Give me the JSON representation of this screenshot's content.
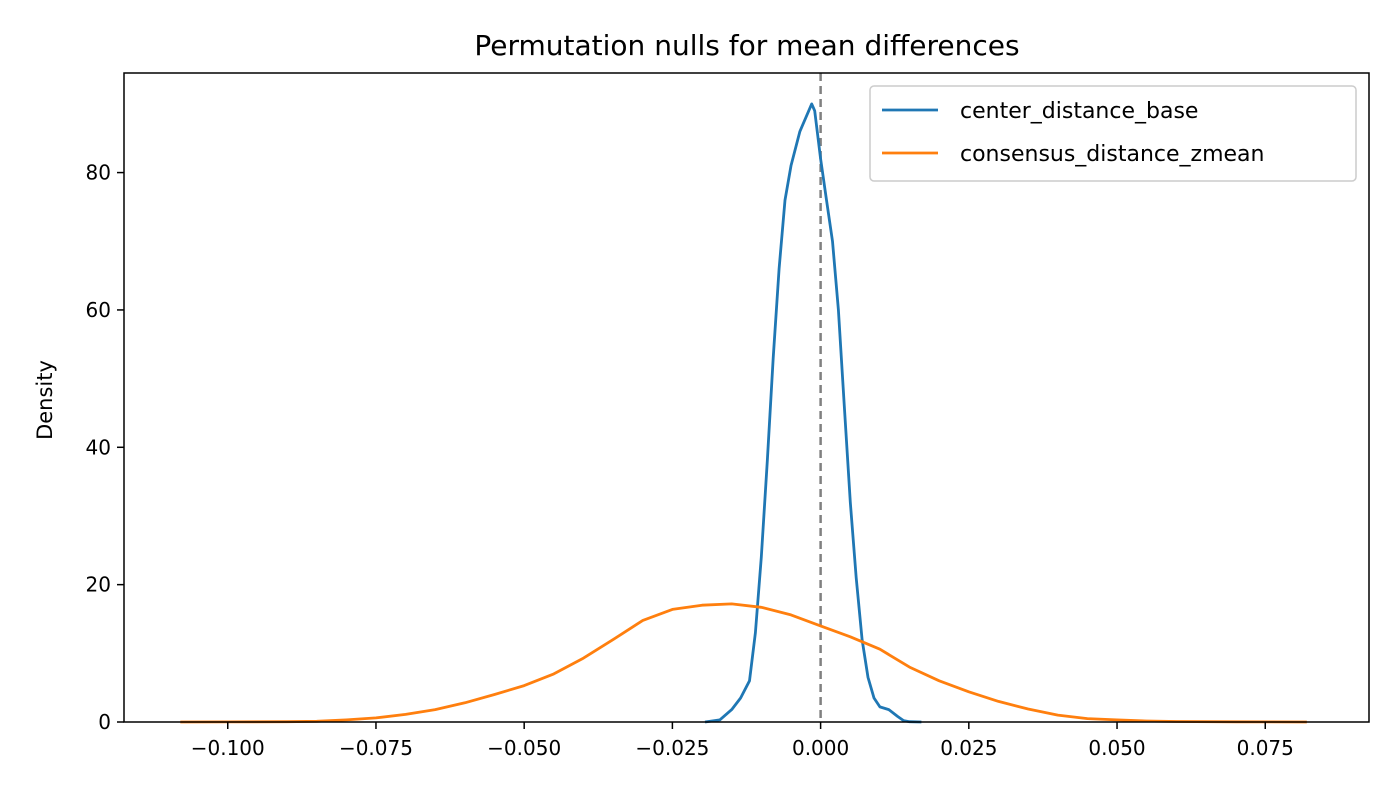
{
  "chart_data": {
    "type": "line",
    "title": "Permutation nulls for mean differences",
    "xlabel": "",
    "ylabel": "Density",
    "xlim": [
      -0.1175,
      0.0925
    ],
    "ylim": [
      0,
      94.5
    ],
    "x_ticks": [
      -0.1,
      -0.075,
      -0.05,
      -0.025,
      0.0,
      0.025,
      0.05,
      0.075
    ],
    "x_tick_labels": [
      "−0.100",
      "−0.075",
      "−0.050",
      "−0.025",
      "0.000",
      "0.025",
      "0.050",
      "0.075"
    ],
    "y_ticks": [
      0,
      20,
      40,
      60,
      80
    ],
    "y_tick_labels": [
      "0",
      "20",
      "40",
      "60",
      "80"
    ],
    "grid": false,
    "legend_position": "top-right",
    "reference_line": {
      "x": 0.0,
      "style": "dashed",
      "color": "#808080"
    },
    "series": [
      {
        "name": "center_distance_base",
        "color": "#1f77b4",
        "points": [
          [
            -0.0195,
            0
          ],
          [
            -0.017,
            0.3
          ],
          [
            -0.015,
            1.8
          ],
          [
            -0.0135,
            3.5
          ],
          [
            -0.012,
            6.0
          ],
          [
            -0.011,
            13
          ],
          [
            -0.01,
            24
          ],
          [
            -0.009,
            38
          ],
          [
            -0.008,
            53
          ],
          [
            -0.007,
            66
          ],
          [
            -0.006,
            76
          ],
          [
            -0.005,
            81
          ],
          [
            -0.0035,
            86
          ],
          [
            -0.0015,
            90
          ],
          [
            -0.001,
            89
          ],
          [
            0.0,
            82
          ],
          [
            0.001,
            76
          ],
          [
            0.0015,
            73
          ],
          [
            0.002,
            70
          ],
          [
            0.003,
            60
          ],
          [
            0.004,
            46
          ],
          [
            0.005,
            32
          ],
          [
            0.006,
            21
          ],
          [
            0.007,
            12
          ],
          [
            0.008,
            6.5
          ],
          [
            0.009,
            3.5
          ],
          [
            0.01,
            2.2
          ],
          [
            0.0115,
            1.8
          ],
          [
            0.013,
            0.8
          ],
          [
            0.014,
            0.2
          ],
          [
            0.015,
            0.05
          ],
          [
            0.017,
            0
          ]
        ]
      },
      {
        "name": "consensus_distance_zmean",
        "color": "#ff7f0e",
        "points": [
          [
            -0.108,
            0
          ],
          [
            -0.1,
            0.02
          ],
          [
            -0.09,
            0.05
          ],
          [
            -0.085,
            0.1
          ],
          [
            -0.08,
            0.3
          ],
          [
            -0.075,
            0.6
          ],
          [
            -0.07,
            1.1
          ],
          [
            -0.065,
            1.8
          ],
          [
            -0.06,
            2.8
          ],
          [
            -0.055,
            4.0
          ],
          [
            -0.05,
            5.3
          ],
          [
            -0.045,
            7.0
          ],
          [
            -0.04,
            9.3
          ],
          [
            -0.035,
            12.0
          ],
          [
            -0.03,
            14.8
          ],
          [
            -0.025,
            16.4
          ],
          [
            -0.02,
            17.0
          ],
          [
            -0.015,
            17.2
          ],
          [
            -0.01,
            16.7
          ],
          [
            -0.005,
            15.6
          ],
          [
            0.0,
            14.0
          ],
          [
            0.005,
            12.4
          ],
          [
            0.01,
            10.6
          ],
          [
            0.015,
            8.0
          ],
          [
            0.02,
            6.0
          ],
          [
            0.025,
            4.4
          ],
          [
            0.03,
            3.0
          ],
          [
            0.035,
            1.9
          ],
          [
            0.04,
            1.0
          ],
          [
            0.045,
            0.5
          ],
          [
            0.05,
            0.3
          ],
          [
            0.055,
            0.15
          ],
          [
            0.06,
            0.08
          ],
          [
            0.07,
            0.03
          ],
          [
            0.082,
            0
          ]
        ]
      }
    ]
  }
}
